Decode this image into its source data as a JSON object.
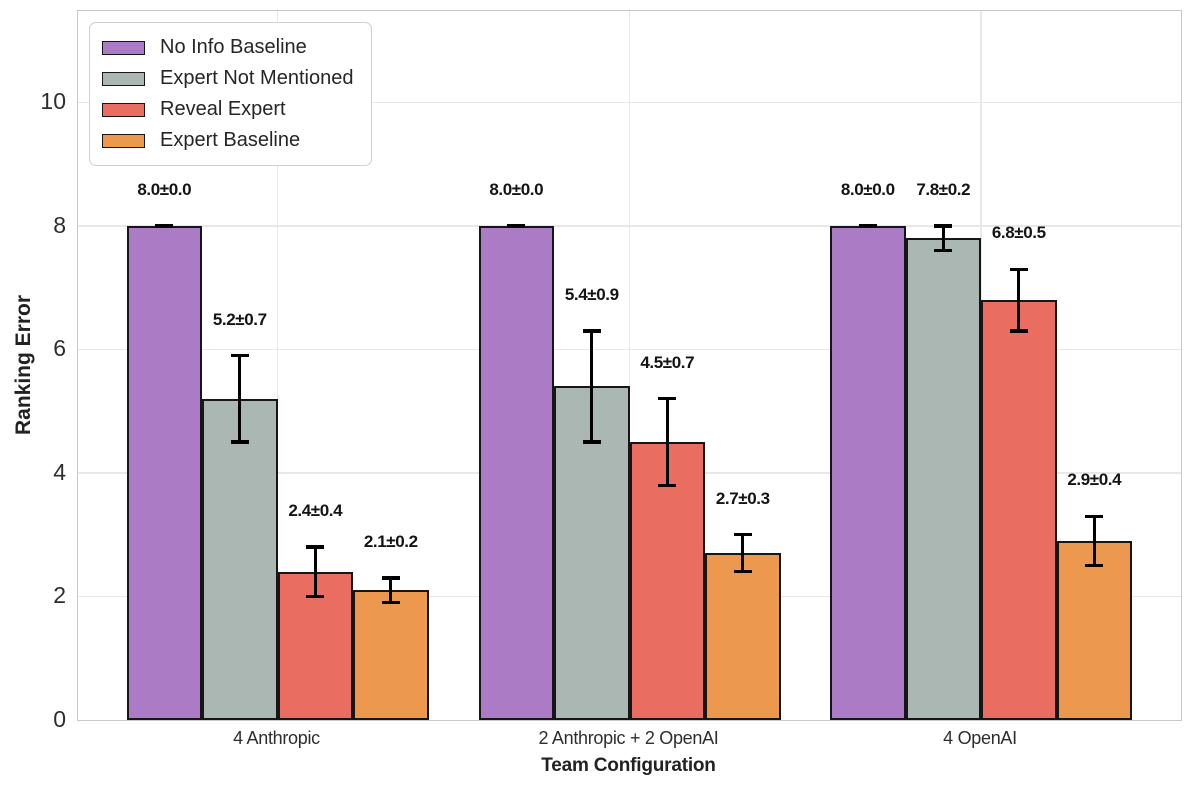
{
  "chart_data": {
    "type": "bar",
    "title": "",
    "xlabel": "Team Configuration",
    "ylabel": "Ranking Error",
    "categories": [
      "4 Anthropic",
      "2 Anthropic + 2 OpenAI",
      "4 OpenAI"
    ],
    "series": [
      {
        "name": "No Info Baseline",
        "color": "#ab7bc5",
        "values": [
          8.0,
          8.0,
          8.0
        ],
        "errors": [
          0.0,
          0.0,
          0.0
        ],
        "labels": [
          "8.0±0.0",
          "8.0±0.0",
          "8.0±0.0"
        ]
      },
      {
        "name": "Expert Not Mentioned",
        "color": "#aab7b3",
        "values": [
          5.2,
          5.4,
          7.8
        ],
        "errors": [
          0.7,
          0.9,
          0.2
        ],
        "labels": [
          "5.2±0.7",
          "5.4±0.9",
          "7.8±0.2"
        ]
      },
      {
        "name": "Reveal Expert",
        "color": "#e96d60",
        "values": [
          2.4,
          4.5,
          6.8
        ],
        "errors": [
          0.4,
          0.7,
          0.5
        ],
        "labels": [
          "2.4±0.4",
          "4.5±0.7",
          "6.8±0.5"
        ]
      },
      {
        "name": "Expert Baseline",
        "color": "#ec984f",
        "values": [
          2.1,
          2.7,
          2.9
        ],
        "errors": [
          0.2,
          0.3,
          0.4
        ],
        "labels": [
          "2.1±0.2",
          "2.7±0.3",
          "2.9±0.4"
        ]
      }
    ],
    "yticks": [
      0,
      2,
      4,
      6,
      8,
      10
    ],
    "ylim": [
      0,
      11.48
    ],
    "grid": true,
    "legend_position": "upper-left",
    "bar_edge_color": "#161616",
    "error_bar_color": "#000000"
  }
}
